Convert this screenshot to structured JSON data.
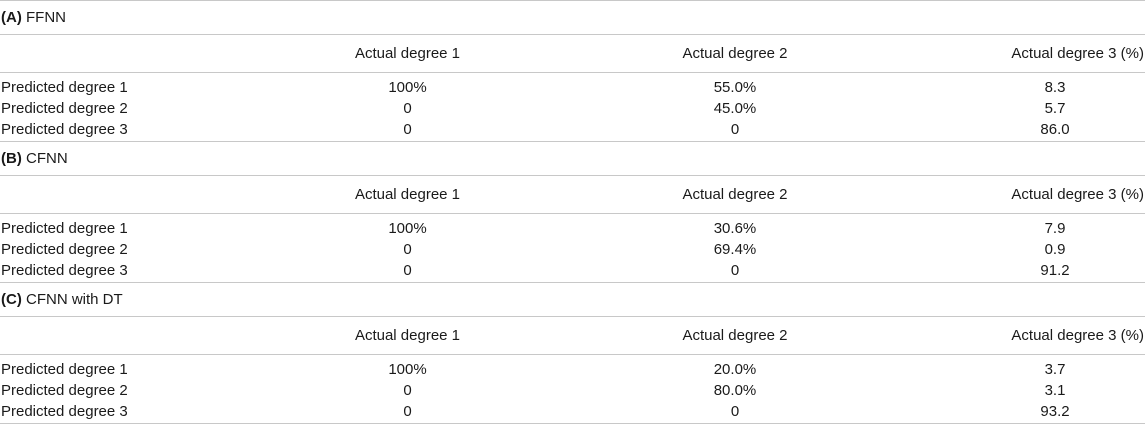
{
  "columns": [
    "",
    "Actual degree 1",
    "Actual degree 2",
    "Actual degree 3 (%)"
  ],
  "panels": [
    {
      "label": "(A)",
      "name": "FFNN",
      "rows": [
        {
          "header": "Predicted degree 1",
          "values": [
            "100%",
            "55.0%",
            "8.3"
          ]
        },
        {
          "header": "Predicted degree 2",
          "values": [
            "0",
            "45.0%",
            "5.7"
          ]
        },
        {
          "header": "Predicted degree 3",
          "values": [
            "0",
            "0",
            "86.0"
          ]
        }
      ]
    },
    {
      "label": "(B)",
      "name": "CFNN",
      "rows": [
        {
          "header": "Predicted degree 1",
          "values": [
            "100%",
            "30.6%",
            "7.9"
          ]
        },
        {
          "header": "Predicted degree 2",
          "values": [
            "0",
            "69.4%",
            "0.9"
          ]
        },
        {
          "header": "Predicted degree 3",
          "values": [
            "0",
            "0",
            "91.2"
          ]
        }
      ]
    },
    {
      "label": "(C)",
      "name": "CFNN with DT",
      "rows": [
        {
          "header": "Predicted degree 1",
          "values": [
            "100%",
            "20.0%",
            "3.7"
          ]
        },
        {
          "header": "Predicted degree 2",
          "values": [
            "0",
            "80.0%",
            "3.1"
          ]
        },
        {
          "header": "Predicted degree 3",
          "values": [
            "0",
            "0",
            "93.2"
          ]
        }
      ]
    }
  ]
}
